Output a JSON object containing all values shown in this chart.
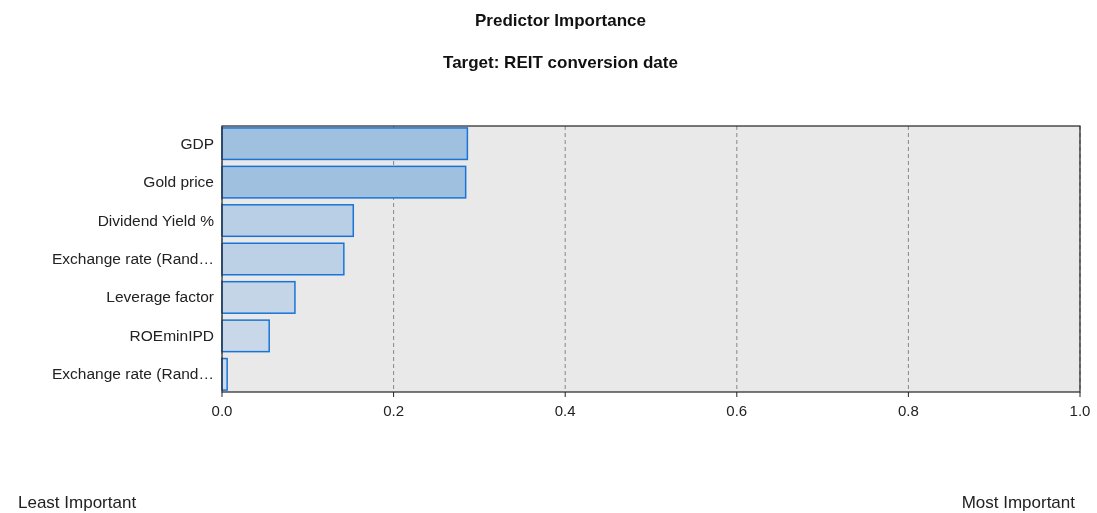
{
  "chart_data": {
    "type": "bar",
    "orientation": "horizontal",
    "title": "Predictor Importance",
    "subtitle": "Target: REIT conversion date",
    "categories": [
      "GDP",
      "Gold price",
      "Dividend Yield %",
      "Exchange rate (Rand…",
      "Leverage factor",
      "ROEminIPD",
      "Exchange rate (Rand…"
    ],
    "values": [
      0.286,
      0.284,
      0.153,
      0.142,
      0.085,
      0.055,
      0.006
    ],
    "colors": [
      "#a0c0e0",
      "#a0c0e0",
      "#b9cfe6",
      "#bcd0e6",
      "#c4d5e8",
      "#c8d8e9",
      "#ccdaea"
    ],
    "xlim": [
      0,
      1
    ],
    "xticks": [
      {
        "value": 0,
        "label": "0.0"
      },
      0.2,
      0.4,
      0.6,
      0.8,
      {
        "value": 1,
        "label": "1.0"
      }
    ],
    "grid": "x",
    "annotations": [
      "Least Important",
      "Most Important"
    ]
  }
}
